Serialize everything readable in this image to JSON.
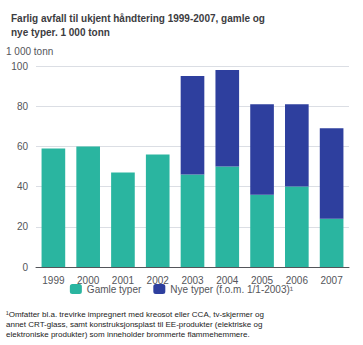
{
  "chart_data": {
    "type": "bar",
    "title": "Farlig avfall til ukjent håndtering 1999-2007, gamle og\nnye typer. 1 000 tonn",
    "ylabel": "1 000 tonn",
    "categories": [
      "1999",
      "2000",
      "2001",
      "2002",
      "2003",
      "2004",
      "2005",
      "2006",
      "2007"
    ],
    "series": [
      {
        "name": "Gamle typer",
        "color": "#2ab5a0",
        "values": [
          59,
          60,
          47,
          56,
          46,
          50,
          36,
          40,
          24
        ]
      },
      {
        "name": "Nye typer (f.o.m. 1/1-2003)¹",
        "color": "#2e3f9e",
        "values": [
          0,
          0,
          0,
          0,
          49,
          48,
          45,
          41,
          45
        ]
      }
    ],
    "stacked": true,
    "ylim": [
      0,
      100
    ],
    "yticks": [
      0,
      20,
      40,
      60,
      80,
      100
    ],
    "grid": true,
    "legend": "bottom",
    "annotations": [
      "¹Omfatter bl.a. trevirke impregnert med kreosot eller CCA, tv-skjermer og\nannet CRT-glass, samt konstruksjonsplast til EE-produkter (elektriske og\nelektroniske produkter) som inneholder brommerte flammehemmere."
    ]
  }
}
